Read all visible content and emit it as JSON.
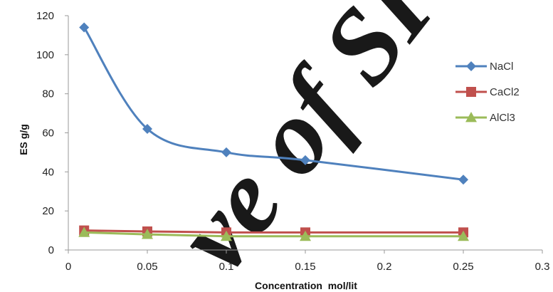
{
  "chart_data": {
    "type": "line",
    "title": "",
    "xlabel": "Concentration  mol/lit",
    "ylabel": "ES g/g",
    "xlim": [
      0,
      0.3
    ],
    "ylim": [
      0,
      120
    ],
    "x_ticks": [
      "0",
      "0.05",
      "0.1",
      "0.15",
      "0.2",
      "0.25",
      "0.3"
    ],
    "y_ticks": [
      "0",
      "20",
      "40",
      "60",
      "80",
      "100",
      "120"
    ],
    "grid": false,
    "legend_position": "right",
    "series": [
      {
        "name": "NaCl",
        "color": "#4F81BD",
        "marker": "diamond",
        "smooth": true,
        "x": [
          0.01,
          0.05,
          0.1,
          0.15,
          0.25
        ],
        "y": [
          114,
          62,
          50,
          46,
          36
        ]
      },
      {
        "name": "CaCl2",
        "color": "#C0504D",
        "marker": "square",
        "smooth": false,
        "x": [
          0.01,
          0.05,
          0.1,
          0.15,
          0.25
        ],
        "y": [
          10,
          9.5,
          9,
          9,
          9
        ]
      },
      {
        "name": "AlCl3",
        "color": "#9BBB59",
        "marker": "triangle",
        "smooth": false,
        "x": [
          0.01,
          0.05,
          0.1,
          0.15,
          0.25
        ],
        "y": [
          9,
          8,
          7,
          7,
          7
        ]
      }
    ]
  },
  "watermark": "ve of SI"
}
